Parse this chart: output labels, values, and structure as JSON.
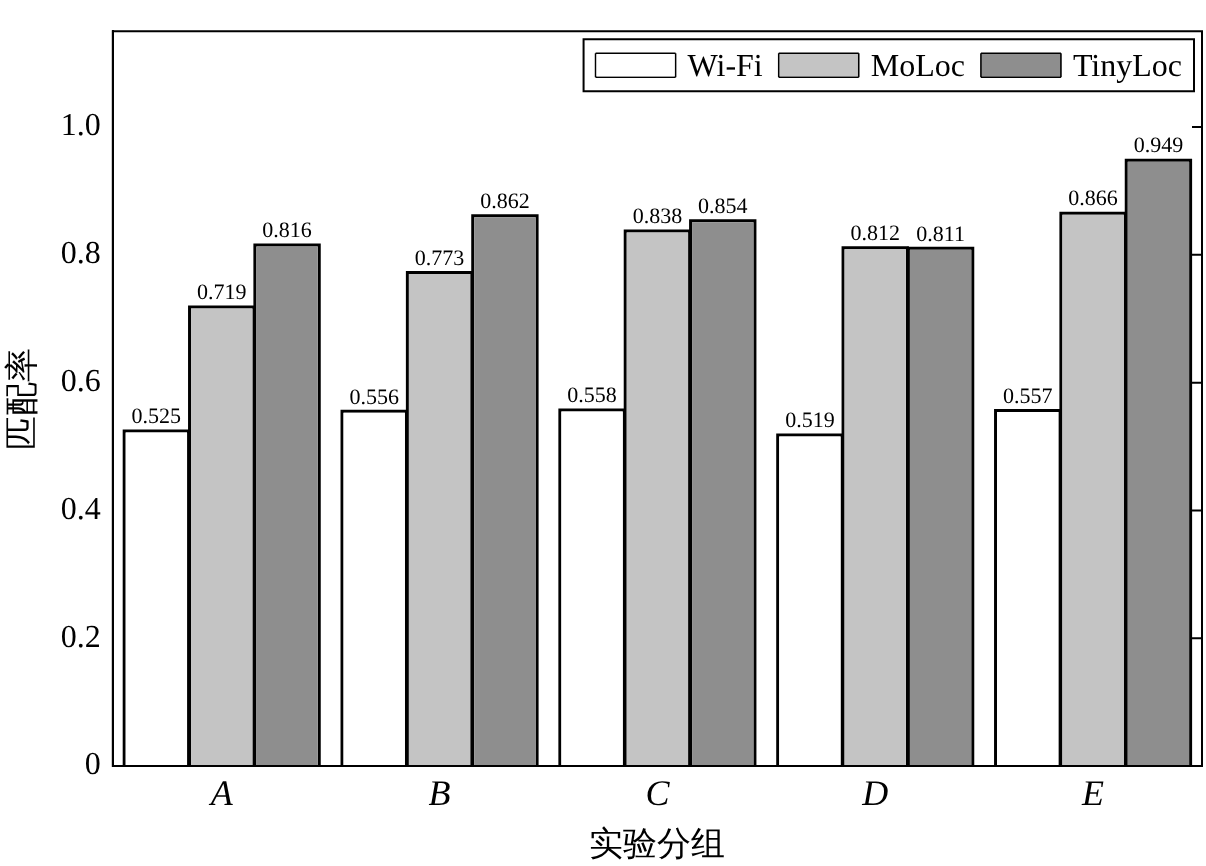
{
  "chart_data": {
    "type": "bar",
    "xlabel": "实验分组",
    "ylabel": "匹配率",
    "categories": [
      "A",
      "B",
      "C",
      "D",
      "E"
    ],
    "series": [
      {
        "name": "Wi-Fi",
        "color": "#ffffff",
        "values": [
          0.525,
          0.556,
          0.558,
          0.519,
          0.557
        ]
      },
      {
        "name": "MoLoc",
        "color": "#c4c4c4",
        "values": [
          0.719,
          0.773,
          0.838,
          0.812,
          0.866
        ]
      },
      {
        "name": "TinyLoc",
        "color": "#8e8e8e",
        "values": [
          0.816,
          0.862,
          0.854,
          0.811,
          0.949
        ]
      }
    ],
    "ylim": [
      0,
      1.15
    ],
    "yticks": [
      0,
      0.2,
      0.4,
      0.6,
      0.8,
      {
        "value": 1.0,
        "label": "1.0"
      }
    ],
    "data_labels": true,
    "legend": "top right",
    "grid": false
  }
}
